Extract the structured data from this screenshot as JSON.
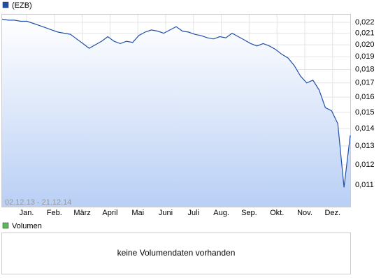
{
  "chart_data": {
    "type": "area",
    "series": [
      {
        "name": "(EZB)",
        "color": "#1f4fa8",
        "values": [
          0.0223,
          0.0222,
          0.0222,
          0.0221,
          0.0221,
          0.0219,
          0.0217,
          0.0215,
          0.0213,
          0.0211,
          0.021,
          0.0209,
          0.0205,
          0.0201,
          0.0197,
          0.02,
          0.0203,
          0.0207,
          0.0203,
          0.0201,
          0.0203,
          0.0202,
          0.0208,
          0.0211,
          0.0213,
          0.0212,
          0.021,
          0.0213,
          0.0216,
          0.0212,
          0.0211,
          0.0209,
          0.0208,
          0.0206,
          0.0205,
          0.0207,
          0.0206,
          0.021,
          0.0207,
          0.0204,
          0.0201,
          0.0199,
          0.0201,
          0.0199,
          0.0196,
          0.0192,
          0.0189,
          0.0183,
          0.0175,
          0.017,
          0.0172,
          0.0165,
          0.0153,
          0.0151,
          0.0143,
          0.0109,
          0.0136
        ]
      }
    ],
    "xtick_labels": [
      "Jan.",
      "Feb.",
      "März",
      "April",
      "Mai",
      "Juni",
      "Juli",
      "Aug.",
      "Sep.",
      "Okt.",
      "Nov.",
      "Dez."
    ],
    "date_range": "02.12.13 - 21.12.14",
    "ylim": [
      0.01004,
      0.02273
    ],
    "log_scale": true,
    "grid": true,
    "yticks": [
      {
        "value": 0.011,
        "label": "0,011"
      },
      {
        "value": 0.012,
        "label": "0,012"
      },
      {
        "value": 0.013,
        "label": "0,013"
      },
      {
        "value": 0.014,
        "label": "0,014"
      },
      {
        "value": 0.015,
        "label": "0,015"
      },
      {
        "value": 0.016,
        "label": "0,016"
      },
      {
        "value": 0.017,
        "label": "0,017"
      },
      {
        "value": 0.018,
        "label": "0,018"
      },
      {
        "value": 0.019,
        "label": "0,019"
      },
      {
        "value": 0.02,
        "label": "0,020"
      },
      {
        "value": 0.021,
        "label": "0,021"
      },
      {
        "value": 0.022,
        "label": "0,022"
      }
    ]
  },
  "volume_panel": {
    "legend": "Volumen",
    "color": "#5cb85c",
    "message": "keine Volumendaten vorhanden"
  }
}
